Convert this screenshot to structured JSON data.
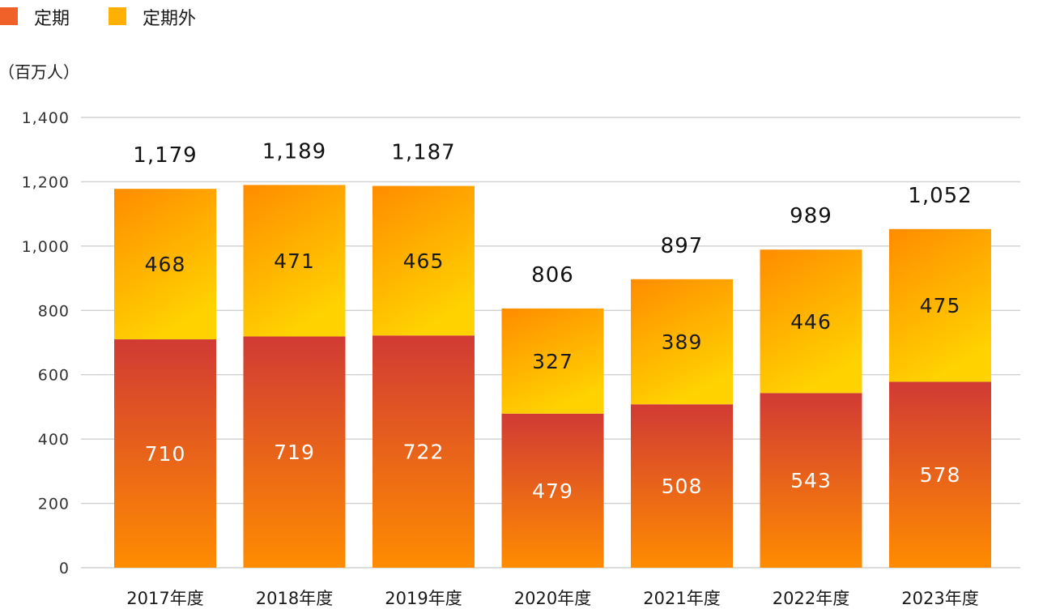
{
  "chart_data": {
    "type": "bar",
    "stacked": true,
    "unit_label": "（百万人）",
    "categories": [
      "2017年度",
      "2018年度",
      "2019年度",
      "2020年度",
      "2021年度",
      "2022年度",
      "2023年度"
    ],
    "series": [
      {
        "name": "定期",
        "values": [
          710,
          719,
          722,
          479,
          508,
          543,
          578
        ],
        "value_labels": [
          "710",
          "719",
          "722",
          "479",
          "508",
          "543",
          "578"
        ]
      },
      {
        "name": "定期外",
        "values": [
          468,
          471,
          465,
          327,
          389,
          446,
          475
        ],
        "value_labels": [
          "468",
          "471",
          "465",
          "327",
          "389",
          "446",
          "475"
        ]
      }
    ],
    "totals": [
      1179,
      1189,
      1187,
      806,
      897,
      989,
      1052
    ],
    "total_labels": [
      "1,179",
      "1,189",
      "1,187",
      "806",
      "897",
      "989",
      "1,052"
    ],
    "ylim": [
      0,
      1400
    ],
    "yticks": [
      0,
      200,
      400,
      600,
      800,
      1000,
      1200,
      1400
    ],
    "ytick_labels": [
      "0",
      "200",
      "400",
      "600",
      "800",
      "1,000",
      "1,200",
      "1,400"
    ],
    "grid": true,
    "legend_position": "top-left",
    "colors": {
      "teiki_top": "#d13a34",
      "teiki_bottom": "#ff8c00",
      "teikigai_top": "#ff8c00",
      "teikigai_bottom": "#ffd200",
      "legend_teiki": "#f0612a",
      "legend_teikigai": "#ffb000"
    }
  }
}
